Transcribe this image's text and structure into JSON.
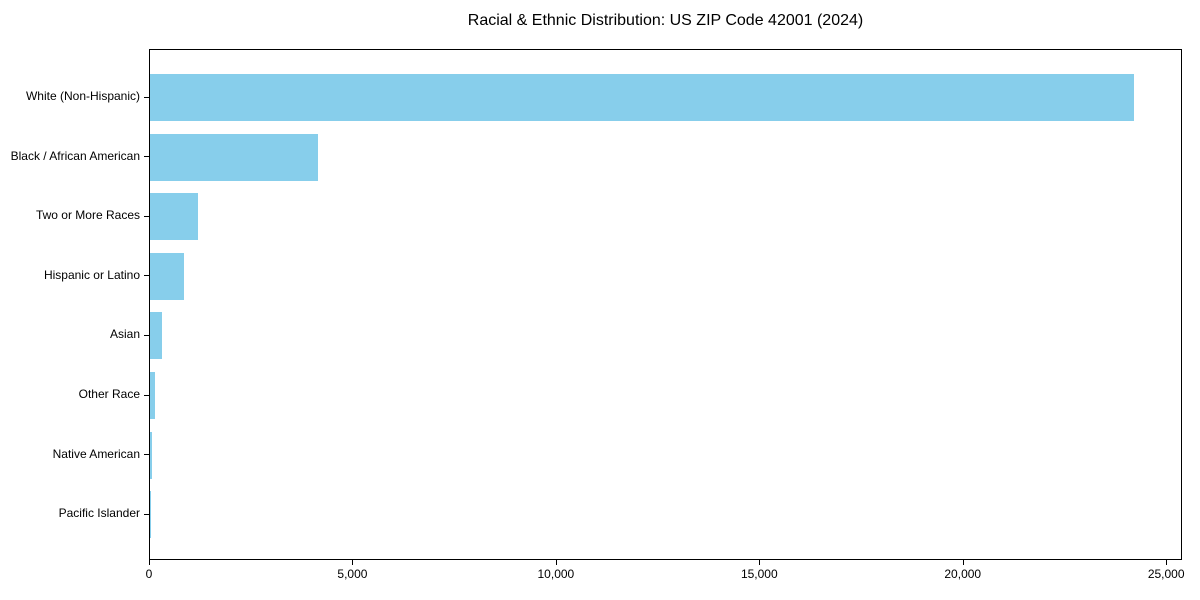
{
  "figure": {
    "background": "#ffffff"
  },
  "chart_data": {
    "type": "bar",
    "orientation": "horizontal",
    "title": "Racial & Ethnic Distribution: US ZIP Code 42001 (2024)",
    "categories": [
      "White (Non-Hispanic)",
      "Black / African American",
      "Two or More Races",
      "Hispanic or Latino",
      "Asian",
      "Other Race",
      "Native American",
      "Pacific Islander"
    ],
    "values": [
      24180,
      4130,
      1190,
      845,
      290,
      125,
      45,
      15
    ],
    "xlabel": "",
    "ylabel": "",
    "xlim": [
      0,
      25389
    ],
    "x_ticks": [
      0,
      5000,
      10000,
      15000,
      20000,
      25000
    ],
    "x_tick_labels": [
      "0",
      "5,000",
      "10,000",
      "15,000",
      "20,000",
      "25,000"
    ],
    "grid": false,
    "legend": false,
    "bar_color": "#87CEEB",
    "text_color": "#000000",
    "spine_color": "#000000"
  }
}
